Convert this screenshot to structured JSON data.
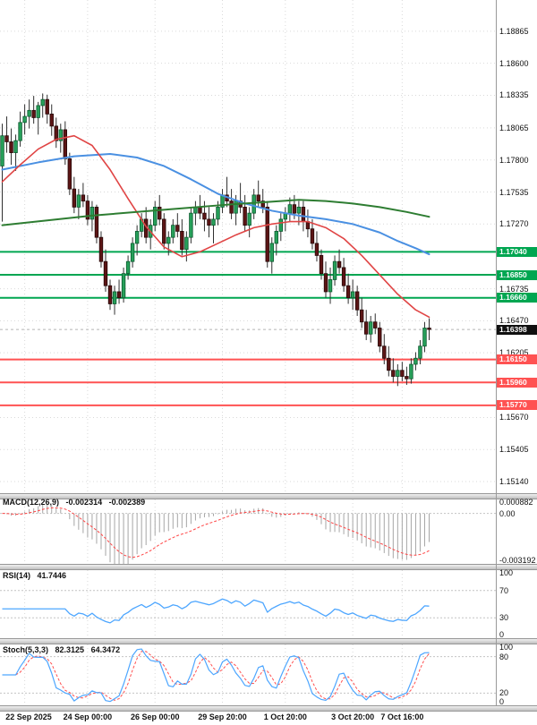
{
  "chart_data": {
    "type": "candlestick",
    "x_axis": {
      "tick_labels": [
        "22 Sep 2025",
        "24 Sep 00:00",
        "26 Sep 00:00",
        "29 Sep 20:00",
        "1 Oct 20:00",
        "3 Oct 20:00",
        "7 Oct 16:00"
      ],
      "tick_candle_indices": [
        5,
        19,
        34,
        49,
        63,
        78,
        89
      ]
    },
    "y_axis": {
      "tick_labels": [
        "1.18865",
        "1.18600",
        "1.18335",
        "1.18065",
        "1.17800",
        "1.17535",
        "1.17270",
        "1.16735",
        "1.16470",
        "1.16205",
        "1.15670",
        "1.15405",
        "1.15140"
      ],
      "ylim": [
        1.15044,
        1.19123
      ]
    },
    "candles_ohlc": [
      [
        1.1775,
        1.181,
        1.1729,
        1.18
      ],
      [
        1.18,
        1.1816,
        1.1786,
        1.1795
      ],
      [
        1.1795,
        1.1806,
        1.1776,
        1.1786
      ],
      [
        1.1786,
        1.1801,
        1.1771,
        1.1796
      ],
      [
        1.1796,
        1.182,
        1.1791,
        1.1811
      ],
      [
        1.1811,
        1.1826,
        1.1801,
        1.1816
      ],
      [
        1.1816,
        1.183,
        1.1806,
        1.1821
      ],
      [
        1.1821,
        1.1833,
        1.181,
        1.1815
      ],
      [
        1.1815,
        1.1828,
        1.1801,
        1.1825
      ],
      [
        1.1825,
        1.1835,
        1.1815,
        1.183
      ],
      [
        1.183,
        1.1834,
        1.181,
        1.1818
      ],
      [
        1.1818,
        1.1826,
        1.18,
        1.1808
      ],
      [
        1.1808,
        1.1815,
        1.179,
        1.1796
      ],
      [
        1.1796,
        1.181,
        1.1786,
        1.1805
      ],
      [
        1.1805,
        1.1812,
        1.1776,
        1.1781
      ],
      [
        1.1781,
        1.1786,
        1.1751,
        1.1756
      ],
      [
        1.1756,
        1.1766,
        1.1736,
        1.1741
      ],
      [
        1.1741,
        1.1756,
        1.1731,
        1.1751
      ],
      [
        1.1751,
        1.1761,
        1.1741,
        1.1746
      ],
      [
        1.1746,
        1.1751,
        1.1726,
        1.1731
      ],
      [
        1.1731,
        1.1746,
        1.1721,
        1.1741
      ],
      [
        1.1741,
        1.1743,
        1.1711,
        1.1716
      ],
      [
        1.1716,
        1.1721,
        1.1691,
        1.1696
      ],
      [
        1.1696,
        1.1706,
        1.1671,
        1.1676
      ],
      [
        1.1676,
        1.1681,
        1.1656,
        1.1661
      ],
      [
        1.1661,
        1.1676,
        1.1652,
        1.1671
      ],
      [
        1.1671,
        1.1681,
        1.1661,
        1.1666
      ],
      [
        1.1666,
        1.1691,
        1.1662,
        1.1686
      ],
      [
        1.1686,
        1.1701,
        1.1681,
        1.1696
      ],
      [
        1.1696,
        1.1716,
        1.1691,
        1.1711
      ],
      [
        1.1711,
        1.1726,
        1.1701,
        1.1721
      ],
      [
        1.1721,
        1.1736,
        1.1716,
        1.1731
      ],
      [
        1.1731,
        1.1741,
        1.1711,
        1.1716
      ],
      [
        1.1716,
        1.1731,
        1.1706,
        1.1726
      ],
      [
        1.1726,
        1.1746,
        1.1721,
        1.1741
      ],
      [
        1.1741,
        1.1751,
        1.1726,
        1.1731
      ],
      [
        1.1731,
        1.1736,
        1.1706,
        1.1711
      ],
      [
        1.1711,
        1.1721,
        1.1701,
        1.1716
      ],
      [
        1.1716,
        1.1731,
        1.1711,
        1.1726
      ],
      [
        1.1726,
        1.1736,
        1.1716,
        1.1721
      ],
      [
        1.1721,
        1.1731,
        1.1701,
        1.1706
      ],
      [
        1.1706,
        1.1721,
        1.1696,
        1.1716
      ],
      [
        1.1716,
        1.1741,
        1.1711,
        1.1736
      ],
      [
        1.1736,
        1.1746,
        1.1726,
        1.1741
      ],
      [
        1.1741,
        1.1751,
        1.1731,
        1.1736
      ],
      [
        1.1736,
        1.1746,
        1.1721,
        1.1731
      ],
      [
        1.1731,
        1.1741,
        1.1716,
        1.1726
      ],
      [
        1.1726,
        1.1736,
        1.1711,
        1.1731
      ],
      [
        1.1731,
        1.1746,
        1.1726,
        1.1741
      ],
      [
        1.1741,
        1.1756,
        1.1736,
        1.1751
      ],
      [
        1.1751,
        1.1766,
        1.1741,
        1.1746
      ],
      [
        1.1746,
        1.1756,
        1.1731,
        1.1736
      ],
      [
        1.1736,
        1.1751,
        1.1726,
        1.1746
      ],
      [
        1.1746,
        1.1761,
        1.1736,
        1.1741
      ],
      [
        1.1741,
        1.1751,
        1.1721,
        1.1726
      ],
      [
        1.1726,
        1.1741,
        1.1716,
        1.1736
      ],
      [
        1.1736,
        1.1756,
        1.1731,
        1.1751
      ],
      [
        1.1751,
        1.1763,
        1.1741,
        1.1746
      ],
      [
        1.1746,
        1.1756,
        1.1736,
        1.1741
      ],
      [
        1.1741,
        1.1746,
        1.1691,
        1.1696
      ],
      [
        1.1696,
        1.1716,
        1.1686,
        1.1711
      ],
      [
        1.1711,
        1.1726,
        1.1701,
        1.1721
      ],
      [
        1.1721,
        1.1736,
        1.1713,
        1.1731
      ],
      [
        1.1731,
        1.1741,
        1.1721,
        1.1736
      ],
      [
        1.1736,
        1.1749,
        1.1729,
        1.1743
      ],
      [
        1.1743,
        1.1751,
        1.1731,
        1.1736
      ],
      [
        1.1736,
        1.1746,
        1.1726,
        1.1741
      ],
      [
        1.1741,
        1.1746,
        1.1721,
        1.1729
      ],
      [
        1.1729,
        1.1739,
        1.1716,
        1.1723
      ],
      [
        1.1723,
        1.1731,
        1.1706,
        1.1711
      ],
      [
        1.1711,
        1.1721,
        1.1696,
        1.1701
      ],
      [
        1.1701,
        1.1706,
        1.1681,
        1.1686
      ],
      [
        1.1686,
        1.1696,
        1.1666,
        1.1671
      ],
      [
        1.1671,
        1.1691,
        1.1661,
        1.1681
      ],
      [
        1.1681,
        1.1701,
        1.1676,
        1.1696
      ],
      [
        1.1696,
        1.1706,
        1.1686,
        1.1691
      ],
      [
        1.1691,
        1.1699,
        1.1671,
        1.1676
      ],
      [
        1.1676,
        1.1686,
        1.1661,
        1.1666
      ],
      [
        1.1666,
        1.1681,
        1.1656,
        1.1671
      ],
      [
        1.1671,
        1.1676,
        1.1651,
        1.1656
      ],
      [
        1.1656,
        1.1666,
        1.1641,
        1.1646
      ],
      [
        1.1646,
        1.1656,
        1.1631,
        1.1636
      ],
      [
        1.1636,
        1.1651,
        1.1629,
        1.1646
      ],
      [
        1.1646,
        1.1653,
        1.1636,
        1.1641
      ],
      [
        1.1641,
        1.1646,
        1.1621,
        1.1626
      ],
      [
        1.1626,
        1.1636,
        1.1611,
        1.1616
      ],
      [
        1.1616,
        1.1626,
        1.1601,
        1.1606
      ],
      [
        1.1606,
        1.1616,
        1.1596,
        1.1601
      ],
      [
        1.1601,
        1.1611,
        1.1593,
        1.1606
      ],
      [
        1.1606,
        1.1613,
        1.1597,
        1.1601
      ],
      [
        1.1601,
        1.1609,
        1.1594,
        1.1599
      ],
      [
        1.1599,
        1.1616,
        1.1595,
        1.1611
      ],
      [
        1.1611,
        1.1621,
        1.1606,
        1.1616
      ],
      [
        1.1616,
        1.1631,
        1.1611,
        1.1626
      ],
      [
        1.1626,
        1.1646,
        1.1621,
        1.1641
      ],
      [
        1.1641,
        1.1649,
        1.1631,
        1.16398
      ]
    ],
    "moving_averages": [
      {
        "name": "ma-blue",
        "color": "#4a90e2",
        "width": 2,
        "points": [
          [
            0,
            1.1772
          ],
          [
            8,
            1.1778
          ],
          [
            16,
            1.1783
          ],
          [
            24,
            1.1785
          ],
          [
            30,
            1.1782
          ],
          [
            36,
            1.1775
          ],
          [
            42,
            1.1764
          ],
          [
            48,
            1.1752
          ],
          [
            54,
            1.1744
          ],
          [
            60,
            1.1738
          ],
          [
            66,
            1.1734
          ],
          [
            72,
            1.1731
          ],
          [
            78,
            1.1727
          ],
          [
            84,
            1.172
          ],
          [
            88,
            1.1713
          ],
          [
            92,
            1.1707
          ],
          [
            95,
            1.1702
          ]
        ]
      },
      {
        "name": "ma-red",
        "color": "#e04545",
        "width": 1.6,
        "points": [
          [
            0,
            1.1762
          ],
          [
            4,
            1.1776
          ],
          [
            8,
            1.1789
          ],
          [
            12,
            1.1797
          ],
          [
            16,
            1.18
          ],
          [
            20,
            1.1792
          ],
          [
            24,
            1.1772
          ],
          [
            28,
            1.1748
          ],
          [
            32,
            1.1725
          ],
          [
            36,
            1.1708
          ],
          [
            40,
            1.17
          ],
          [
            44,
            1.1704
          ],
          [
            48,
            1.1711
          ],
          [
            52,
            1.1718
          ],
          [
            56,
            1.1724
          ],
          [
            60,
            1.1727
          ],
          [
            64,
            1.1729
          ],
          [
            68,
            1.1729
          ],
          [
            72,
            1.1724
          ],
          [
            76,
            1.1715
          ],
          [
            80,
            1.1701
          ],
          [
            84,
            1.1685
          ],
          [
            88,
            1.1669
          ],
          [
            92,
            1.1656
          ],
          [
            95,
            1.165
          ]
        ]
      },
      {
        "name": "ma-green",
        "color": "#2e7d32",
        "width": 2,
        "points": [
          [
            0,
            1.1726
          ],
          [
            10,
            1.173
          ],
          [
            20,
            1.1734
          ],
          [
            30,
            1.1737
          ],
          [
            40,
            1.174
          ],
          [
            50,
            1.1743
          ],
          [
            58,
            1.1745
          ],
          [
            66,
            1.1747
          ],
          [
            72,
            1.1746
          ],
          [
            78,
            1.1744
          ],
          [
            84,
            1.1741
          ],
          [
            90,
            1.1737
          ],
          [
            95,
            1.1733
          ]
        ]
      }
    ],
    "levels": {
      "green_lines": [
        {
          "price": 1.1704,
          "label": "1.17040"
        },
        {
          "price": 1.1685,
          "label": "1.16850"
        },
        {
          "price": 1.1666,
          "label": "1.16660"
        }
      ],
      "red_lines": [
        {
          "price": 1.1615,
          "label": "1.16150"
        },
        {
          "price": 1.1596,
          "label": "1.15960"
        },
        {
          "price": 1.1577,
          "label": "1.15770"
        }
      ],
      "current_price": {
        "price": 1.16398,
        "label": "1.16398"
      }
    },
    "indicators": {
      "macd": {
        "name": "MACD(12,26,9)",
        "value_main": "-0.002314",
        "value_signal": "-0.002389",
        "fast": 12,
        "slow": 26,
        "signal": 9,
        "scale_labels": [
          "0.000882",
          "0.00",
          "-0.003192"
        ],
        "scale_max": 0.000882,
        "scale_min": -0.003192
      },
      "rsi": {
        "name": "RSI(14)",
        "value": "41.7446",
        "period": 14,
        "scale_labels": [
          "100",
          "70",
          "30",
          "0"
        ],
        "level_lines": [
          70,
          30
        ]
      },
      "stoch": {
        "name": "Stoch(5,3,3)",
        "value_k": "82.3125",
        "value_d": "64.3472",
        "k": 5,
        "slowing": 3,
        "d": 3,
        "scale_labels": [
          "100",
          "80",
          "20",
          "0"
        ],
        "level_lines": [
          80,
          20
        ]
      }
    }
  },
  "colors": {
    "background": "#ffffff",
    "grid": "#d9d9d9",
    "axis_text": "#111111",
    "candle_up_fill": "#27a05a",
    "candle_up_stroke": "#0b5a2e",
    "candle_down_fill": "#5c1515",
    "candle_down_stroke": "#260808",
    "wick": "#303030",
    "level_green": "#00a651",
    "level_red": "#ff5252",
    "current_badge_bg": "#101010",
    "current_line": "#b5b5b5",
    "macd_hist": "#a6a6a6",
    "macd_signal": "#ff4545",
    "rsi_line": "#4da6ff",
    "stoch_k": "#4da6ff",
    "stoch_d": "#ff5050",
    "panel_level_line": "#c4c4c4"
  }
}
